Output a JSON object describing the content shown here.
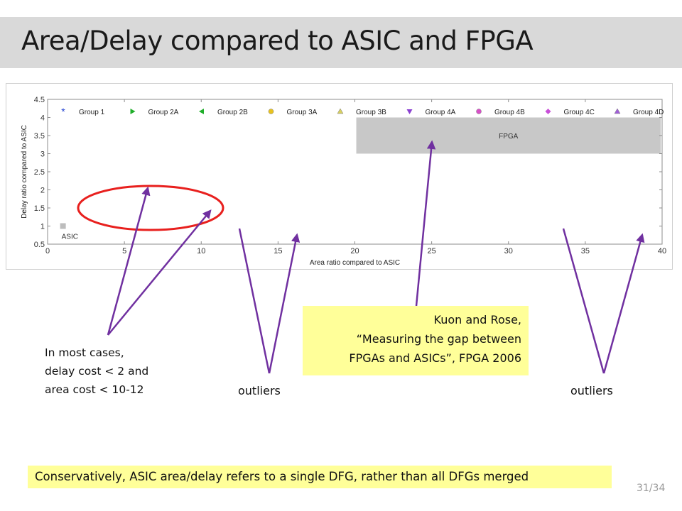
{
  "slide": {
    "title": "Area/Delay compared to ASIC and FPGA",
    "page": "31/34"
  },
  "annotations": {
    "note_left": [
      "In most cases,",
      "delay cost < 2 and",
      "area cost < 10-12"
    ],
    "outliers_left": "outliers",
    "outliers_right": "outliers",
    "citation": [
      "Kuon and Rose,",
      "“Measuring the gap between",
      "FPGAs and ASICs”, FPGA 2006"
    ],
    "footer_note": "Conservatively, ASIC area/delay refers to a single DFG, rather than all DFGs merged"
  },
  "colors": {
    "title_bar": "#d9d9d9",
    "highlight": "#ffff99",
    "ellipse": "#e8201e",
    "arrow": "#7030a0",
    "fpga_band": "#c8c8c8"
  },
  "chart_data": {
    "type": "scatter",
    "xlabel": "Area ratio compared to ASIC",
    "ylabel": "Delay ratio compared to ASIC",
    "xlim": [
      0,
      40
    ],
    "ylim": [
      0.5,
      4.5
    ],
    "xticks": [
      0,
      5,
      10,
      15,
      20,
      25,
      30,
      35,
      40
    ],
    "yticks": [
      0.5,
      1,
      1.5,
      2,
      2.5,
      3,
      3.5,
      4,
      4.5
    ],
    "legend": {
      "placement": "top",
      "entries": [
        {
          "name": "Group 1",
          "marker": "asterisk",
          "color": "#1f3fd1"
        },
        {
          "name": "Group 2A",
          "marker": "triangle-right",
          "color": "#1fae2a"
        },
        {
          "name": "Group 2B",
          "marker": "triangle-left",
          "color": "#1fae2a"
        },
        {
          "name": "Group 3A",
          "marker": "circle",
          "color": "#e8c21e"
        },
        {
          "name": "Group 3B",
          "marker": "triangle-up",
          "color": "#d8d060"
        },
        {
          "name": "Group 4A",
          "marker": "triangle-down",
          "color": "#8a3fd1"
        },
        {
          "name": "Group 4B",
          "marker": "circle",
          "color": "#d84fc8"
        },
        {
          "name": "Group 4C",
          "marker": "diamond",
          "color": "#c84fd8"
        },
        {
          "name": "Group 4D",
          "marker": "triangle-up",
          "color": "#a05fd8"
        }
      ]
    },
    "regions": [
      {
        "label": "FPGA",
        "x": [
          20,
          40
        ],
        "y": [
          3,
          4
        ]
      },
      {
        "label": "ASIC",
        "x": [
          1,
          1
        ],
        "y": [
          1,
          1
        ]
      }
    ]
  }
}
